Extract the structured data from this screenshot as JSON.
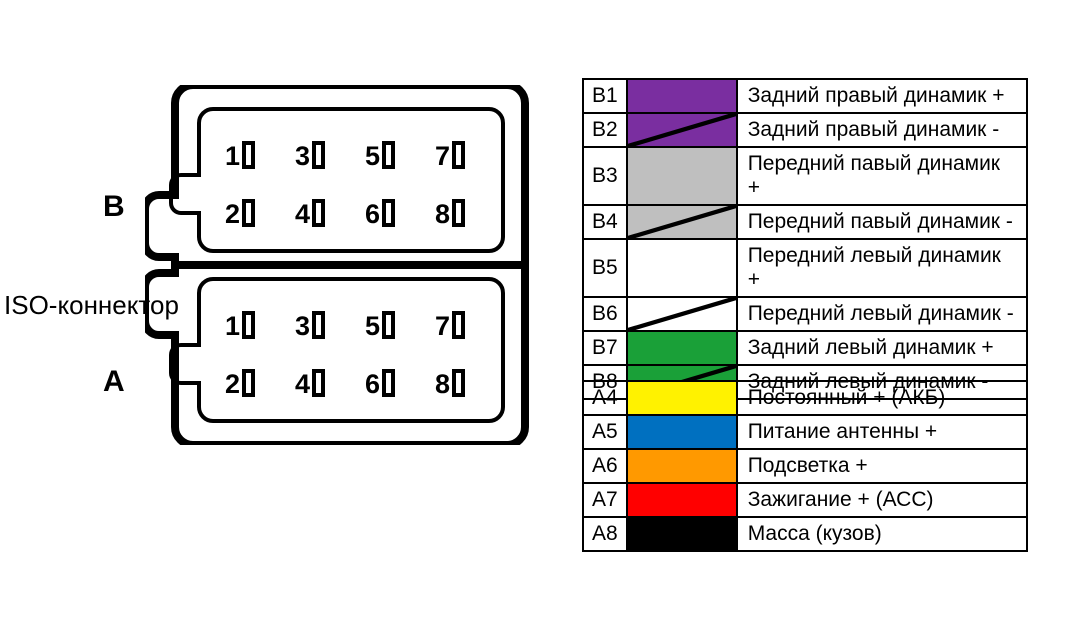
{
  "connector_label": "ISO-коннектор",
  "side_labels": {
    "b": "B",
    "a": "A"
  },
  "pin_numbers": [
    "1",
    "2",
    "3",
    "4",
    "5",
    "6",
    "7",
    "8"
  ],
  "stroke_color": "#000000",
  "legend_b": [
    {
      "pin": "B1",
      "color": "#7a2ea0",
      "stripe": false,
      "desc": "Задний правый динамик +"
    },
    {
      "pin": "B2",
      "color": "#7a2ea0",
      "stripe": true,
      "desc": "Задний правый динамик -"
    },
    {
      "pin": "B3",
      "color": "#bfbfbf",
      "stripe": false,
      "desc": "Передний павый динамик +"
    },
    {
      "pin": "B4",
      "color": "#bfbfbf",
      "stripe": true,
      "desc": "Передний павый динамик -"
    },
    {
      "pin": "B5",
      "color": "#ffffff",
      "stripe": false,
      "desc": "Передний левый динамик +"
    },
    {
      "pin": "B6",
      "color": "#ffffff",
      "stripe": true,
      "desc": "Передний левый динамик -"
    },
    {
      "pin": "B7",
      "color": "#1aa038",
      "stripe": false,
      "desc": "Задний левый динамик +"
    },
    {
      "pin": "B8",
      "color": "#1aa038",
      "stripe": true,
      "desc": "Задний левый динамик -"
    }
  ],
  "legend_a": [
    {
      "pin": "A4",
      "color": "#fff200",
      "stripe": false,
      "desc": "Постоянный + (АКБ)"
    },
    {
      "pin": "A5",
      "color": "#0070c0",
      "stripe": false,
      "desc": "Питание антенны +"
    },
    {
      "pin": "A6",
      "color": "#ff9900",
      "stripe": false,
      "desc": "Подсветка +"
    },
    {
      "pin": "A7",
      "color": "#ff0000",
      "stripe": false,
      "desc": "Зажигание + (АСС)"
    },
    {
      "pin": "A8",
      "color": "#000000",
      "stripe": false,
      "desc": "Масса (кузов)"
    }
  ],
  "diagram": {
    "outer_stroke": 8,
    "inner_stroke": 4,
    "corner_radius": 18,
    "pin_width": 10,
    "pin_height": 24
  }
}
